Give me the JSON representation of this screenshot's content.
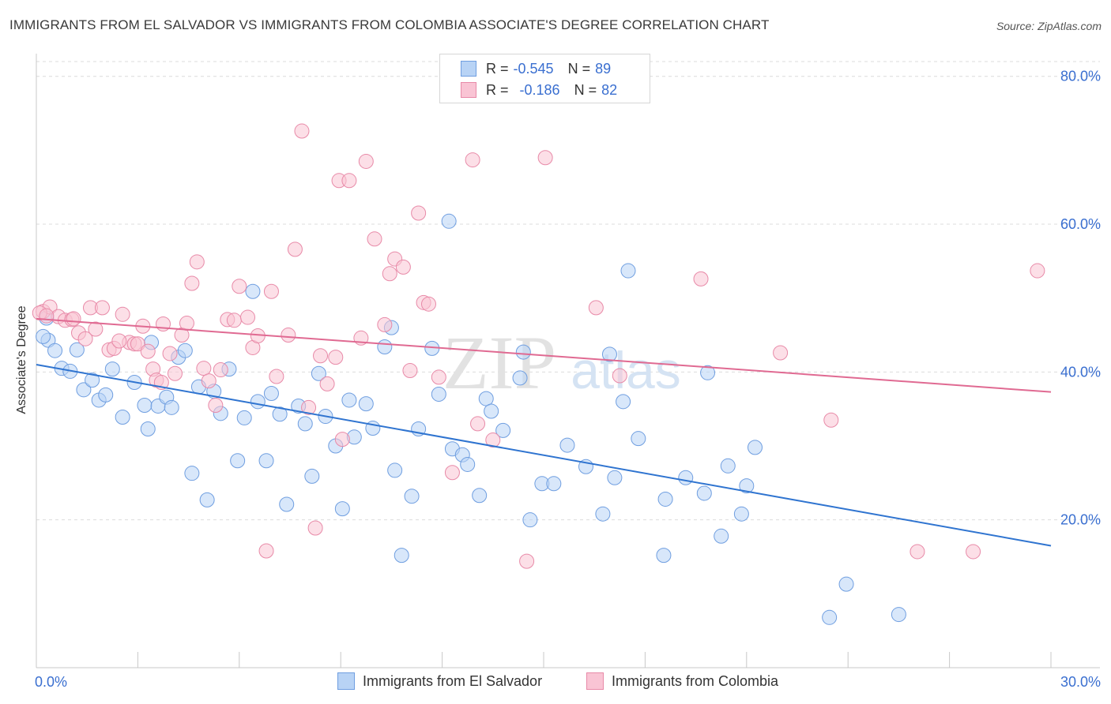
{
  "title": "IMMIGRANTS FROM EL SALVADOR VS IMMIGRANTS FROM COLOMBIA ASSOCIATE'S DEGREE CORRELATION CHART",
  "source": "Source: ZipAtlas.com",
  "watermark": {
    "zip": "ZIP",
    "atlas": "atlas"
  },
  "legend_top": {
    "r_label": "R =",
    "n_label": "N =",
    "rows": [
      {
        "r": "-0.545",
        "n": "89",
        "color": "#b8d3f5",
        "border": "#6f9ee0"
      },
      {
        "r": "-0.186",
        "n": "82",
        "color": "#f9c4d4",
        "border": "#e88aa8"
      }
    ]
  },
  "legend_bottom": [
    {
      "label": "Immigrants from El Salvador",
      "color": "#b8d3f5",
      "border": "#6f9ee0"
    },
    {
      "label": "Immigrants from Colombia",
      "color": "#f9c4d4",
      "border": "#e88aa8"
    }
  ],
  "chart_data": {
    "type": "scatter",
    "title": "IMMIGRANTS FROM EL SALVADOR VS IMMIGRANTS FROM COLOMBIA ASSOCIATE'S DEGREE CORRELATION CHART",
    "xlabel": "",
    "ylabel": "Associate's Degree",
    "xlim": [
      0,
      30
    ],
    "ylim": [
      0,
      82
    ],
    "x_tick_labels": [
      {
        "value": 0,
        "label": "0.0%"
      },
      {
        "value": 30,
        "label": "30.0%"
      }
    ],
    "y_tick_labels": [
      {
        "value": 20,
        "label": "20.0%"
      },
      {
        "value": 40,
        "label": "40.0%"
      },
      {
        "value": 60,
        "label": "60.0%"
      },
      {
        "value": 80,
        "label": "80.0%"
      }
    ],
    "grid": "horizontal dashed",
    "legend_position": "top-center",
    "series": [
      {
        "name": "Immigrants from El Salvador",
        "color": "#6f9ee0",
        "fill": "#b8d3f5",
        "trend": {
          "x": [
            0,
            30
          ],
          "y": [
            41.0,
            16.5
          ],
          "color": "#2f74d0"
        },
        "points": [
          [
            0.3,
            47.3
          ],
          [
            0.35,
            44.3
          ],
          [
            0.55,
            42.9
          ],
          [
            0.75,
            40.5
          ],
          [
            1.0,
            40.1
          ],
          [
            1.2,
            43.0
          ],
          [
            1.4,
            37.6
          ],
          [
            1.65,
            38.9
          ],
          [
            1.85,
            36.2
          ],
          [
            2.05,
            36.9
          ],
          [
            2.25,
            40.4
          ],
          [
            2.55,
            33.9
          ],
          [
            2.9,
            38.6
          ],
          [
            3.2,
            35.5
          ],
          [
            3.3,
            32.3
          ],
          [
            3.4,
            44.0
          ],
          [
            3.6,
            35.4
          ],
          [
            3.85,
            36.6
          ],
          [
            4.0,
            35.2
          ],
          [
            4.2,
            42.0
          ],
          [
            4.4,
            42.9
          ],
          [
            4.6,
            26.3
          ],
          [
            4.8,
            38.0
          ],
          [
            5.05,
            22.7
          ],
          [
            5.25,
            37.4
          ],
          [
            5.45,
            34.4
          ],
          [
            5.7,
            40.4
          ],
          [
            5.95,
            28.0
          ],
          [
            6.15,
            33.8
          ],
          [
            6.4,
            50.9
          ],
          [
            6.55,
            36.0
          ],
          [
            6.8,
            28.0
          ],
          [
            6.95,
            37.1
          ],
          [
            7.2,
            34.3
          ],
          [
            7.4,
            22.1
          ],
          [
            7.75,
            35.4
          ],
          [
            7.95,
            33.0
          ],
          [
            8.15,
            25.9
          ],
          [
            8.35,
            39.8
          ],
          [
            8.55,
            34.0
          ],
          [
            8.85,
            30.0
          ],
          [
            9.05,
            21.5
          ],
          [
            9.25,
            36.2
          ],
          [
            9.4,
            31.2
          ],
          [
            9.75,
            35.7
          ],
          [
            9.95,
            32.4
          ],
          [
            10.3,
            43.4
          ],
          [
            10.5,
            46.0
          ],
          [
            10.6,
            26.7
          ],
          [
            10.8,
            15.2
          ],
          [
            11.1,
            23.2
          ],
          [
            11.3,
            32.3
          ],
          [
            11.7,
            43.2
          ],
          [
            11.9,
            37.0
          ],
          [
            12.2,
            60.4
          ],
          [
            12.3,
            29.6
          ],
          [
            12.6,
            28.8
          ],
          [
            12.75,
            27.5
          ],
          [
            13.1,
            23.3
          ],
          [
            13.3,
            36.4
          ],
          [
            13.45,
            34.7
          ],
          [
            13.8,
            32.1
          ],
          [
            14.3,
            39.2
          ],
          [
            14.4,
            42.7
          ],
          [
            14.6,
            20.0
          ],
          [
            14.95,
            24.9
          ],
          [
            15.3,
            24.9
          ],
          [
            15.7,
            30.1
          ],
          [
            16.25,
            27.2
          ],
          [
            16.75,
            20.8
          ],
          [
            16.95,
            42.4
          ],
          [
            17.1,
            25.7
          ],
          [
            17.35,
            36.0
          ],
          [
            17.5,
            53.7
          ],
          [
            17.8,
            31.0
          ],
          [
            18.6,
            22.8
          ],
          [
            18.55,
            15.2
          ],
          [
            19.2,
            25.7
          ],
          [
            19.75,
            23.6
          ],
          [
            19.85,
            39.9
          ],
          [
            20.25,
            17.8
          ],
          [
            20.45,
            27.3
          ],
          [
            20.85,
            20.8
          ],
          [
            21.0,
            24.6
          ],
          [
            21.25,
            29.8
          ],
          [
            23.45,
            6.8
          ],
          [
            23.95,
            11.3
          ],
          [
            25.5,
            7.2
          ],
          [
            0.2,
            44.8
          ]
        ]
      },
      {
        "name": "Immigrants from Colombia",
        "color": "#e88aa8",
        "fill": "#f9c4d4",
        "trend": {
          "x": [
            0,
            30
          ],
          "y": [
            47.2,
            37.3
          ],
          "color": "#e06a92"
        },
        "points": [
          [
            0.2,
            48.2
          ],
          [
            0.4,
            48.8
          ],
          [
            0.65,
            47.5
          ],
          [
            0.85,
            47.0
          ],
          [
            1.05,
            47.1
          ],
          [
            1.25,
            45.3
          ],
          [
            1.45,
            44.5
          ],
          [
            1.6,
            48.7
          ],
          [
            1.75,
            45.8
          ],
          [
            1.95,
            48.7
          ],
          [
            2.15,
            43.0
          ],
          [
            2.3,
            43.2
          ],
          [
            2.55,
            47.8
          ],
          [
            2.75,
            44.0
          ],
          [
            2.9,
            43.8
          ],
          [
            3.0,
            43.8
          ],
          [
            3.15,
            46.2
          ],
          [
            3.3,
            42.8
          ],
          [
            3.45,
            40.4
          ],
          [
            3.55,
            38.9
          ],
          [
            3.75,
            46.5
          ],
          [
            3.95,
            42.5
          ],
          [
            4.1,
            39.8
          ],
          [
            4.3,
            45.0
          ],
          [
            4.45,
            46.6
          ],
          [
            4.6,
            52.0
          ],
          [
            4.75,
            54.9
          ],
          [
            4.95,
            40.5
          ],
          [
            5.1,
            38.8
          ],
          [
            5.3,
            35.5
          ],
          [
            5.45,
            40.3
          ],
          [
            5.65,
            47.1
          ],
          [
            5.85,
            47.0
          ],
          [
            6.0,
            51.6
          ],
          [
            6.25,
            47.4
          ],
          [
            6.4,
            43.3
          ],
          [
            6.55,
            44.9
          ],
          [
            6.8,
            15.8
          ],
          [
            6.95,
            50.9
          ],
          [
            7.1,
            39.4
          ],
          [
            7.45,
            45.0
          ],
          [
            7.65,
            56.6
          ],
          [
            7.85,
            72.6
          ],
          [
            8.05,
            35.2
          ],
          [
            8.25,
            18.9
          ],
          [
            8.4,
            42.2
          ],
          [
            8.6,
            38.4
          ],
          [
            8.85,
            42.0
          ],
          [
            8.95,
            65.9
          ],
          [
            9.05,
            30.9
          ],
          [
            9.25,
            65.9
          ],
          [
            9.6,
            44.6
          ],
          [
            9.75,
            68.5
          ],
          [
            10.0,
            58.0
          ],
          [
            10.3,
            46.4
          ],
          [
            10.45,
            53.3
          ],
          [
            10.6,
            55.3
          ],
          [
            10.85,
            54.2
          ],
          [
            11.05,
            40.2
          ],
          [
            11.3,
            61.5
          ],
          [
            11.45,
            49.4
          ],
          [
            11.6,
            49.2
          ],
          [
            11.9,
            39.3
          ],
          [
            12.3,
            26.4
          ],
          [
            12.9,
            68.7
          ],
          [
            13.05,
            33.0
          ],
          [
            13.5,
            30.8
          ],
          [
            14.5,
            14.4
          ],
          [
            15.05,
            69.0
          ],
          [
            16.55,
            48.7
          ],
          [
            17.25,
            39.5
          ],
          [
            19.65,
            52.6
          ],
          [
            22.0,
            42.6
          ],
          [
            23.5,
            33.5
          ],
          [
            26.05,
            15.7
          ],
          [
            27.7,
            15.7
          ],
          [
            29.6,
            53.7
          ],
          [
            0.1,
            48.0
          ],
          [
            0.3,
            47.6
          ],
          [
            1.1,
            47.2
          ],
          [
            2.45,
            44.2
          ],
          [
            3.7,
            38.6
          ]
        ]
      }
    ]
  }
}
